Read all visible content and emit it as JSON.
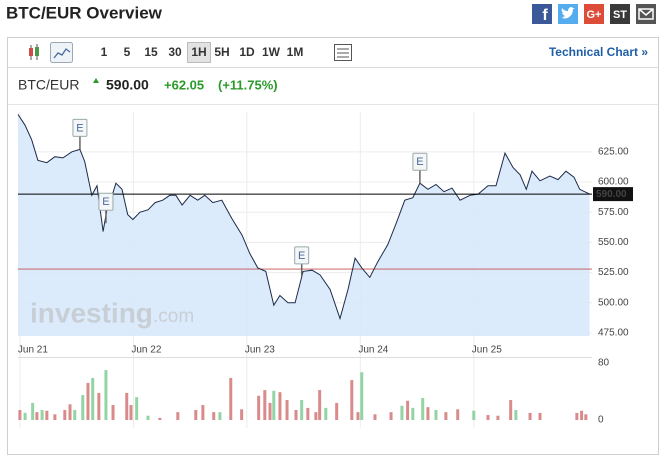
{
  "header": {
    "title": "BTC/EUR Overview"
  },
  "share": {
    "facebook": "f",
    "google": "G+",
    "stumble": "ST"
  },
  "toolbar": {
    "intervals": [
      "1",
      "5",
      "15",
      "30",
      "1H",
      "5H",
      "1D",
      "1W",
      "1M"
    ],
    "selected": 4,
    "link": "Technical Chart »"
  },
  "chart_data": {
    "type": "line",
    "symbol": "BTC/EUR",
    "change": "+62.05",
    "change_pct": "(+11.75%)",
    "last": {
      "value": 590,
      "label": "590.00"
    },
    "color": "#1c2b4a",
    "fill": "#d6e8fa",
    "x": [
      -0.4,
      1.1,
      2.5,
      3.8,
      5.7,
      7.4,
      9.1,
      11.0,
      12.7,
      13.7,
      15.2,
      16.3,
      17.6,
      18.4,
      19.2,
      20.3,
      21.6,
      22.8,
      23.9,
      25.4,
      27.1,
      28.6,
      30.2,
      31.7,
      33.0,
      34.3,
      36.0,
      37.6,
      39.1,
      40.8,
      42.7,
      44.8,
      47.0,
      48.6,
      50.3,
      52.0,
      53.7,
      55.0,
      56.7,
      58.2,
      59.9,
      61.8,
      63.5,
      65.6,
      67.7,
      69.4,
      70.9,
      72.3,
      74.0,
      75.7,
      77.8,
      79.5,
      81.4,
      83.1,
      84.6,
      86.3,
      88.0,
      89.7,
      91.4,
      93.1,
      95.2,
      96.9,
      99.0,
      100.7,
      102.6,
      104.3,
      105.8,
      107.1,
      108.3,
      110.0,
      112.1,
      113.8,
      115.5,
      117.2,
      118.4,
      120.5
    ],
    "values": [
      656,
      647,
      635,
      618,
      616,
      621,
      620,
      625,
      627,
      617,
      589,
      597,
      559,
      577,
      585,
      599,
      594,
      573,
      569,
      575,
      577,
      583,
      585,
      589,
      589,
      581,
      589,
      585,
      589,
      583,
      585,
      570,
      556,
      541,
      529,
      526,
      498,
      506,
      500,
      500,
      526,
      527,
      523,
      511,
      487,
      511,
      537,
      529,
      521,
      534,
      548,
      565,
      585,
      587,
      599,
      594,
      598,
      592,
      595,
      585,
      589,
      590,
      597,
      597,
      624,
      612,
      606,
      594,
      609,
      601,
      605,
      602,
      609,
      604,
      594,
      590
    ],
    "xlim": [
      -0.4,
      121
    ],
    "ylim": [
      472.5,
      658
    ],
    "xticks": [
      {
        "value": 0,
        "label": "Jun 21"
      },
      {
        "value": 24,
        "label": "Jun 22"
      },
      {
        "value": 48,
        "label": "Jun 23"
      },
      {
        "value": 72,
        "label": "Jun 24"
      },
      {
        "value": 96,
        "label": "Jun 25"
      }
    ],
    "yticks": [
      {
        "value": 475,
        "label": "475.00"
      },
      {
        "value": 500,
        "label": "500.00"
      },
      {
        "value": 525,
        "label": "525.00"
      },
      {
        "value": 550,
        "label": "550.00"
      },
      {
        "value": 575,
        "label": "575.00"
      },
      {
        "value": 600,
        "label": "600.00"
      },
      {
        "value": 625,
        "label": "625.00"
      }
    ],
    "grid": true,
    "reference_line": {
      "value": 527.95,
      "color": "#c0504d"
    },
    "events": [
      {
        "x": 12.7,
        "label": "E",
        "side": "above"
      },
      {
        "x": 18.2,
        "label": "E",
        "side": "below"
      },
      {
        "x": 59.6,
        "label": "E",
        "side": "above"
      },
      {
        "x": 84.6,
        "label": "E",
        "side": "above"
      }
    ],
    "watermark": [
      "investing",
      ".com"
    ],
    "volume": {
      "x": [
        0,
        1.1,
        2.7,
        3.6,
        4.7,
        5.7,
        7.4,
        9.5,
        10.6,
        11.6,
        13.3,
        14.4,
        15.4,
        16.7,
        18.2,
        19.7,
        22.6,
        23.5,
        24.7,
        27.1,
        29.6,
        33.4,
        37.2,
        38.7,
        41.0,
        42.3,
        44.6,
        46.9,
        50.5,
        51.8,
        52.9,
        53.7,
        55.0,
        56.5,
        58.4,
        59.6,
        60.9,
        62.6,
        63.4,
        64.7,
        67.0,
        70.2,
        71.5,
        72.3,
        75.1,
        78.5,
        80.8,
        82.0,
        83.1,
        85.2,
        86.3,
        88.0,
        90.1,
        92.6,
        96.0,
        99.0,
        101.1,
        103.8,
        104.9,
        107.9,
        110.0,
        117.8,
        118.8,
        119.7
      ],
      "values": [
        14,
        10,
        24,
        11,
        14,
        13,
        8,
        14,
        22,
        14,
        35,
        52,
        59,
        38,
        70,
        21,
        38,
        21,
        32,
        6,
        3,
        11,
        14,
        21,
        11,
        11,
        59,
        15,
        34,
        42,
        24,
        41,
        39,
        28,
        14,
        28,
        17,
        11,
        42,
        17,
        24,
        56,
        11,
        67,
        8,
        11,
        20,
        27,
        17,
        31,
        18,
        14,
        11,
        15,
        13,
        7,
        6,
        28,
        14,
        10,
        10,
        10,
        13,
        8
      ],
      "colors": [
        "#d98a8a",
        "#92d4a3",
        "#92d4a3",
        "#d98a8a",
        "#92d4a3",
        "#d98a8a",
        "#d98a8a",
        "#d98a8a",
        "#d98a8a",
        "#92d4a3",
        "#92d4a3",
        "#d98a8a",
        "#92d4a3",
        "#d98a8a",
        "#92d4a3",
        "#d98a8a",
        "#d98a8a",
        "#d98a8a",
        "#92d4a3",
        "#92d4a3",
        "#d98a8a",
        "#d98a8a",
        "#d98a8a",
        "#d98a8a",
        "#d98a8a",
        "#92d4a3",
        "#d98a8a",
        "#d98a8a",
        "#d98a8a",
        "#d98a8a",
        "#d98a8a",
        "#92d4a3",
        "#d98a8a",
        "#d98a8a",
        "#d98a8a",
        "#92d4a3",
        "#d98a8a",
        "#d98a8a",
        "#d98a8a",
        "#92d4a3",
        "#d98a8a",
        "#d98a8a",
        "#d98a8a",
        "#92d4a3",
        "#d98a8a",
        "#d98a8a",
        "#92d4a3",
        "#d98a8a",
        "#92d4a3",
        "#92d4a3",
        "#d98a8a",
        "#92d4a3",
        "#d98a8a",
        "#d98a8a",
        "#92d4a3",
        "#d98a8a",
        "#d98a8a",
        "#d98a8a",
        "#92d4a3",
        "#d98a8a",
        "#d98a8a",
        "#d98a8a",
        "#d98a8a",
        "#d98a8a"
      ],
      "ylim": [
        0,
        80
      ],
      "yticks": [
        0,
        80
      ]
    }
  }
}
